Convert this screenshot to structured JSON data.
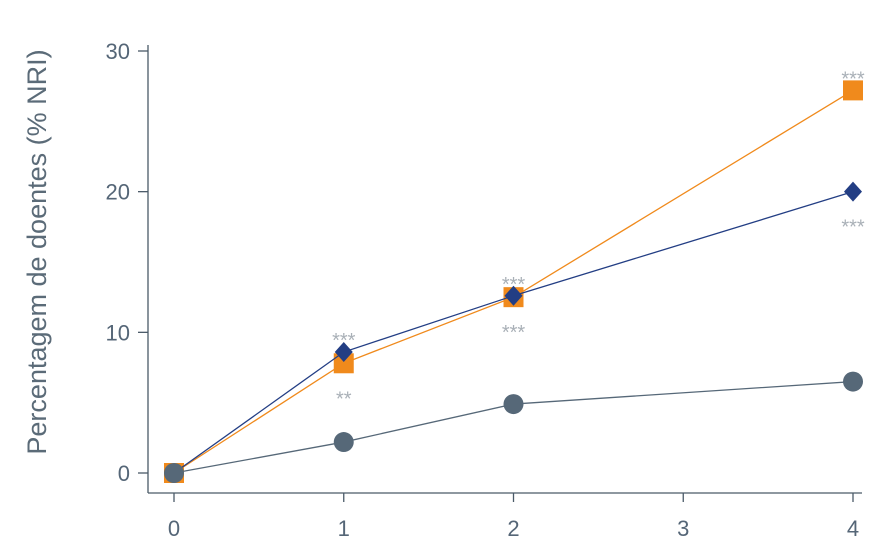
{
  "chart_data": {
    "type": "line",
    "title": "",
    "xlabel": "",
    "ylabel": "Percentagem de doentes (% NRI)",
    "x": [
      0,
      1,
      2,
      3,
      4
    ],
    "xlim": [
      0,
      4
    ],
    "ylim": [
      0,
      30
    ],
    "x_ticks": [
      "0",
      "1",
      "2",
      "3",
      "4"
    ],
    "y_ticks": [
      "0",
      "10",
      "20",
      "30"
    ],
    "y_tick_values": [
      0,
      10,
      20,
      30
    ],
    "grid": false,
    "series": [
      {
        "marker": "square",
        "color": "#f08a1c",
        "x": [
          0,
          1,
          2,
          4
        ],
        "values": [
          0,
          7.8,
          12.5,
          27.2
        ]
      },
      {
        "marker": "diamond",
        "color": "#233e84",
        "x": [
          0,
          1,
          2,
          4
        ],
        "values": [
          0,
          8.6,
          12.6,
          20.0
        ]
      },
      {
        "marker": "circle",
        "color": "#566878",
        "x": [
          0,
          1,
          2,
          4
        ],
        "values": [
          0,
          2.2,
          4.9,
          6.5
        ]
      }
    ],
    "annotations": [
      {
        "text": "***",
        "x": 1,
        "y": 8.6,
        "pos": "above"
      },
      {
        "text": "**",
        "x": 1,
        "y": 7.8,
        "pos": "below"
      },
      {
        "text": "***",
        "x": 2,
        "y": 12.6,
        "pos": "above"
      },
      {
        "text": "***",
        "x": 2,
        "y": 12.5,
        "pos": "below"
      },
      {
        "text": "***",
        "x": 4,
        "y": 27.2,
        "pos": "above"
      },
      {
        "text": "***",
        "x": 4,
        "y": 20.0,
        "pos": "below"
      }
    ]
  }
}
